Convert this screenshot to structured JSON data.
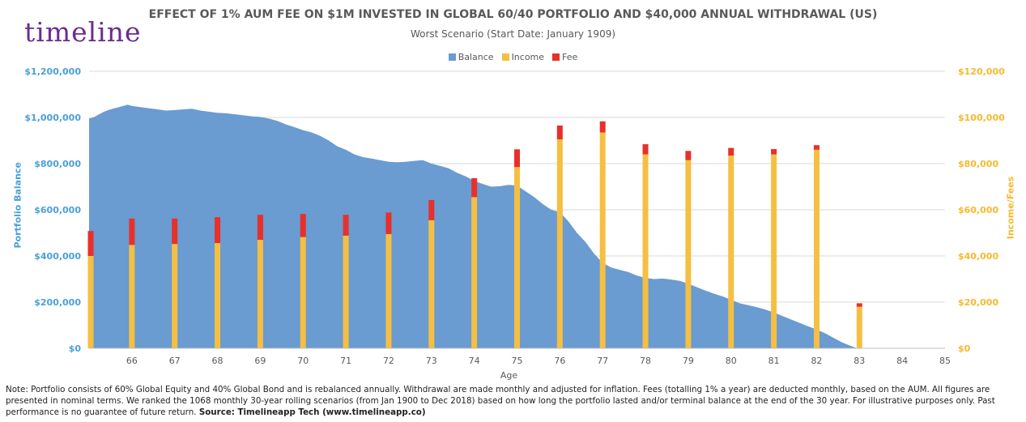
{
  "logo": "timeline",
  "chart_data": {
    "type": "area+bar",
    "title": "EFFECT OF 1% AUM FEE ON $1M INVESTED IN GLOBAL 60/40 PORTFOLIO AND $40,000 ANNUAL WITHDRAWAL (US)",
    "subtitle": "Worst Scenario (Start Date: January 1909)",
    "xlabel": "Age",
    "ylabel_left": "Portfolio Balance",
    "ylabel_right": "Income/Fees",
    "x_ticks": [
      66,
      67,
      68,
      69,
      70,
      71,
      72,
      73,
      74,
      75,
      76,
      77,
      78,
      79,
      80,
      81,
      82,
      83,
      84,
      85
    ],
    "xlim": [
      65,
      85
    ],
    "ylim_left": [
      0,
      1200000
    ],
    "ylim_right": [
      0,
      120000
    ],
    "y_ticks_left": [
      "$0",
      "$200,000",
      "$400,000",
      "$600,000",
      "$800,000",
      "$1,000,000",
      "$1,200,000"
    ],
    "y_ticks_right": [
      "$0",
      "$20,000",
      "$40,000",
      "$60,000",
      "$80,000",
      "$100,000",
      "$120,000"
    ],
    "legend": [
      {
        "name": "Balance",
        "color": "#6a9bd1"
      },
      {
        "name": "Income",
        "color": "#f5bf42"
      },
      {
        "name": "Fee",
        "color": "#e8302a"
      }
    ],
    "balance": {
      "x": [
        65.0,
        65.1,
        65.2,
        65.35,
        65.5,
        65.7,
        65.9,
        66.0,
        66.2,
        66.4,
        66.6,
        66.8,
        67.0,
        67.2,
        67.4,
        67.6,
        67.8,
        68.0,
        68.2,
        68.5,
        68.8,
        69.0,
        69.2,
        69.4,
        69.6,
        69.8,
        70.0,
        70.2,
        70.4,
        70.6,
        70.8,
        71.0,
        71.2,
        71.4,
        71.6,
        71.8,
        72.0,
        72.2,
        72.4,
        72.6,
        72.8,
        73.0,
        73.2,
        73.4,
        73.6,
        73.8,
        74.0,
        74.2,
        74.4,
        74.6,
        74.8,
        75.0,
        75.2,
        75.4,
        75.6,
        75.8,
        76.0,
        76.2,
        76.4,
        76.6,
        76.8,
        77.0,
        77.2,
        77.4,
        77.6,
        77.8,
        78.0,
        78.2,
        78.4,
        78.6,
        78.8,
        79.0,
        79.2,
        79.4,
        79.6,
        79.8,
        80.0,
        80.2,
        80.4,
        80.6,
        80.8,
        81.0,
        81.2,
        81.4,
        81.6,
        81.8,
        82.0,
        82.2,
        82.4,
        82.6,
        82.8,
        82.95
      ],
      "y": [
        995000,
        1000000,
        1010000,
        1025000,
        1035000,
        1045000,
        1055000,
        1050000,
        1045000,
        1040000,
        1035000,
        1030000,
        1032000,
        1035000,
        1038000,
        1030000,
        1025000,
        1020000,
        1018000,
        1012000,
        1005000,
        1002000,
        995000,
        985000,
        970000,
        958000,
        945000,
        935000,
        920000,
        900000,
        875000,
        860000,
        840000,
        828000,
        822000,
        815000,
        808000,
        806000,
        808000,
        812000,
        815000,
        800000,
        790000,
        780000,
        760000,
        745000,
        725000,
        712000,
        700000,
        702000,
        708000,
        705000,
        680000,
        655000,
        625000,
        600000,
        590000,
        550000,
        500000,
        460000,
        410000,
        370000,
        350000,
        340000,
        330000,
        315000,
        305000,
        300000,
        302000,
        298000,
        292000,
        280000,
        265000,
        250000,
        237000,
        225000,
        210000,
        195000,
        187000,
        178000,
        168000,
        155000,
        140000,
        125000,
        110000,
        95000,
        82000,
        65000,
        45000,
        25000,
        10000,
        0
      ]
    },
    "bars": {
      "age": [
        65,
        66,
        67,
        68,
        69,
        70,
        71,
        72,
        73,
        74,
        75,
        76,
        77,
        78,
        79,
        80,
        81,
        82,
        83
      ],
      "income": [
        40000,
        44800,
        45200,
        45600,
        47000,
        48200,
        48800,
        49500,
        55500,
        65500,
        78500,
        90500,
        93500,
        84000,
        81500,
        83500,
        84000,
        86000,
        18000
      ],
      "fee": [
        10800,
        11400,
        11000,
        11200,
        10800,
        10000,
        9000,
        9300,
        8700,
        8200,
        7700,
        6000,
        4800,
        4400,
        4000,
        3300,
        2300,
        2000,
        1500
      ]
    }
  },
  "note": {
    "text": "Note: Portfolio consists of 60% Global Equity and 40% Global Bond and is rebalanced annually. Withdrawal are made monthly and adjusted for inflation. Fees (totalling 1% a year) are deducted monthly, based on the AUM. All figures are presented in nominal terms. We ranked the 1068 monthly 30-year rolling scenarios (from Jan 1900 to Dec 2018) based on how long the portfolio lasted and/or terminal balance at the end of the 30 year. For illustrative purposes only. Past performance is no guarantee of future return.",
    "source": "Source: Timelineapp Tech  (www.timelineapp.co)"
  }
}
